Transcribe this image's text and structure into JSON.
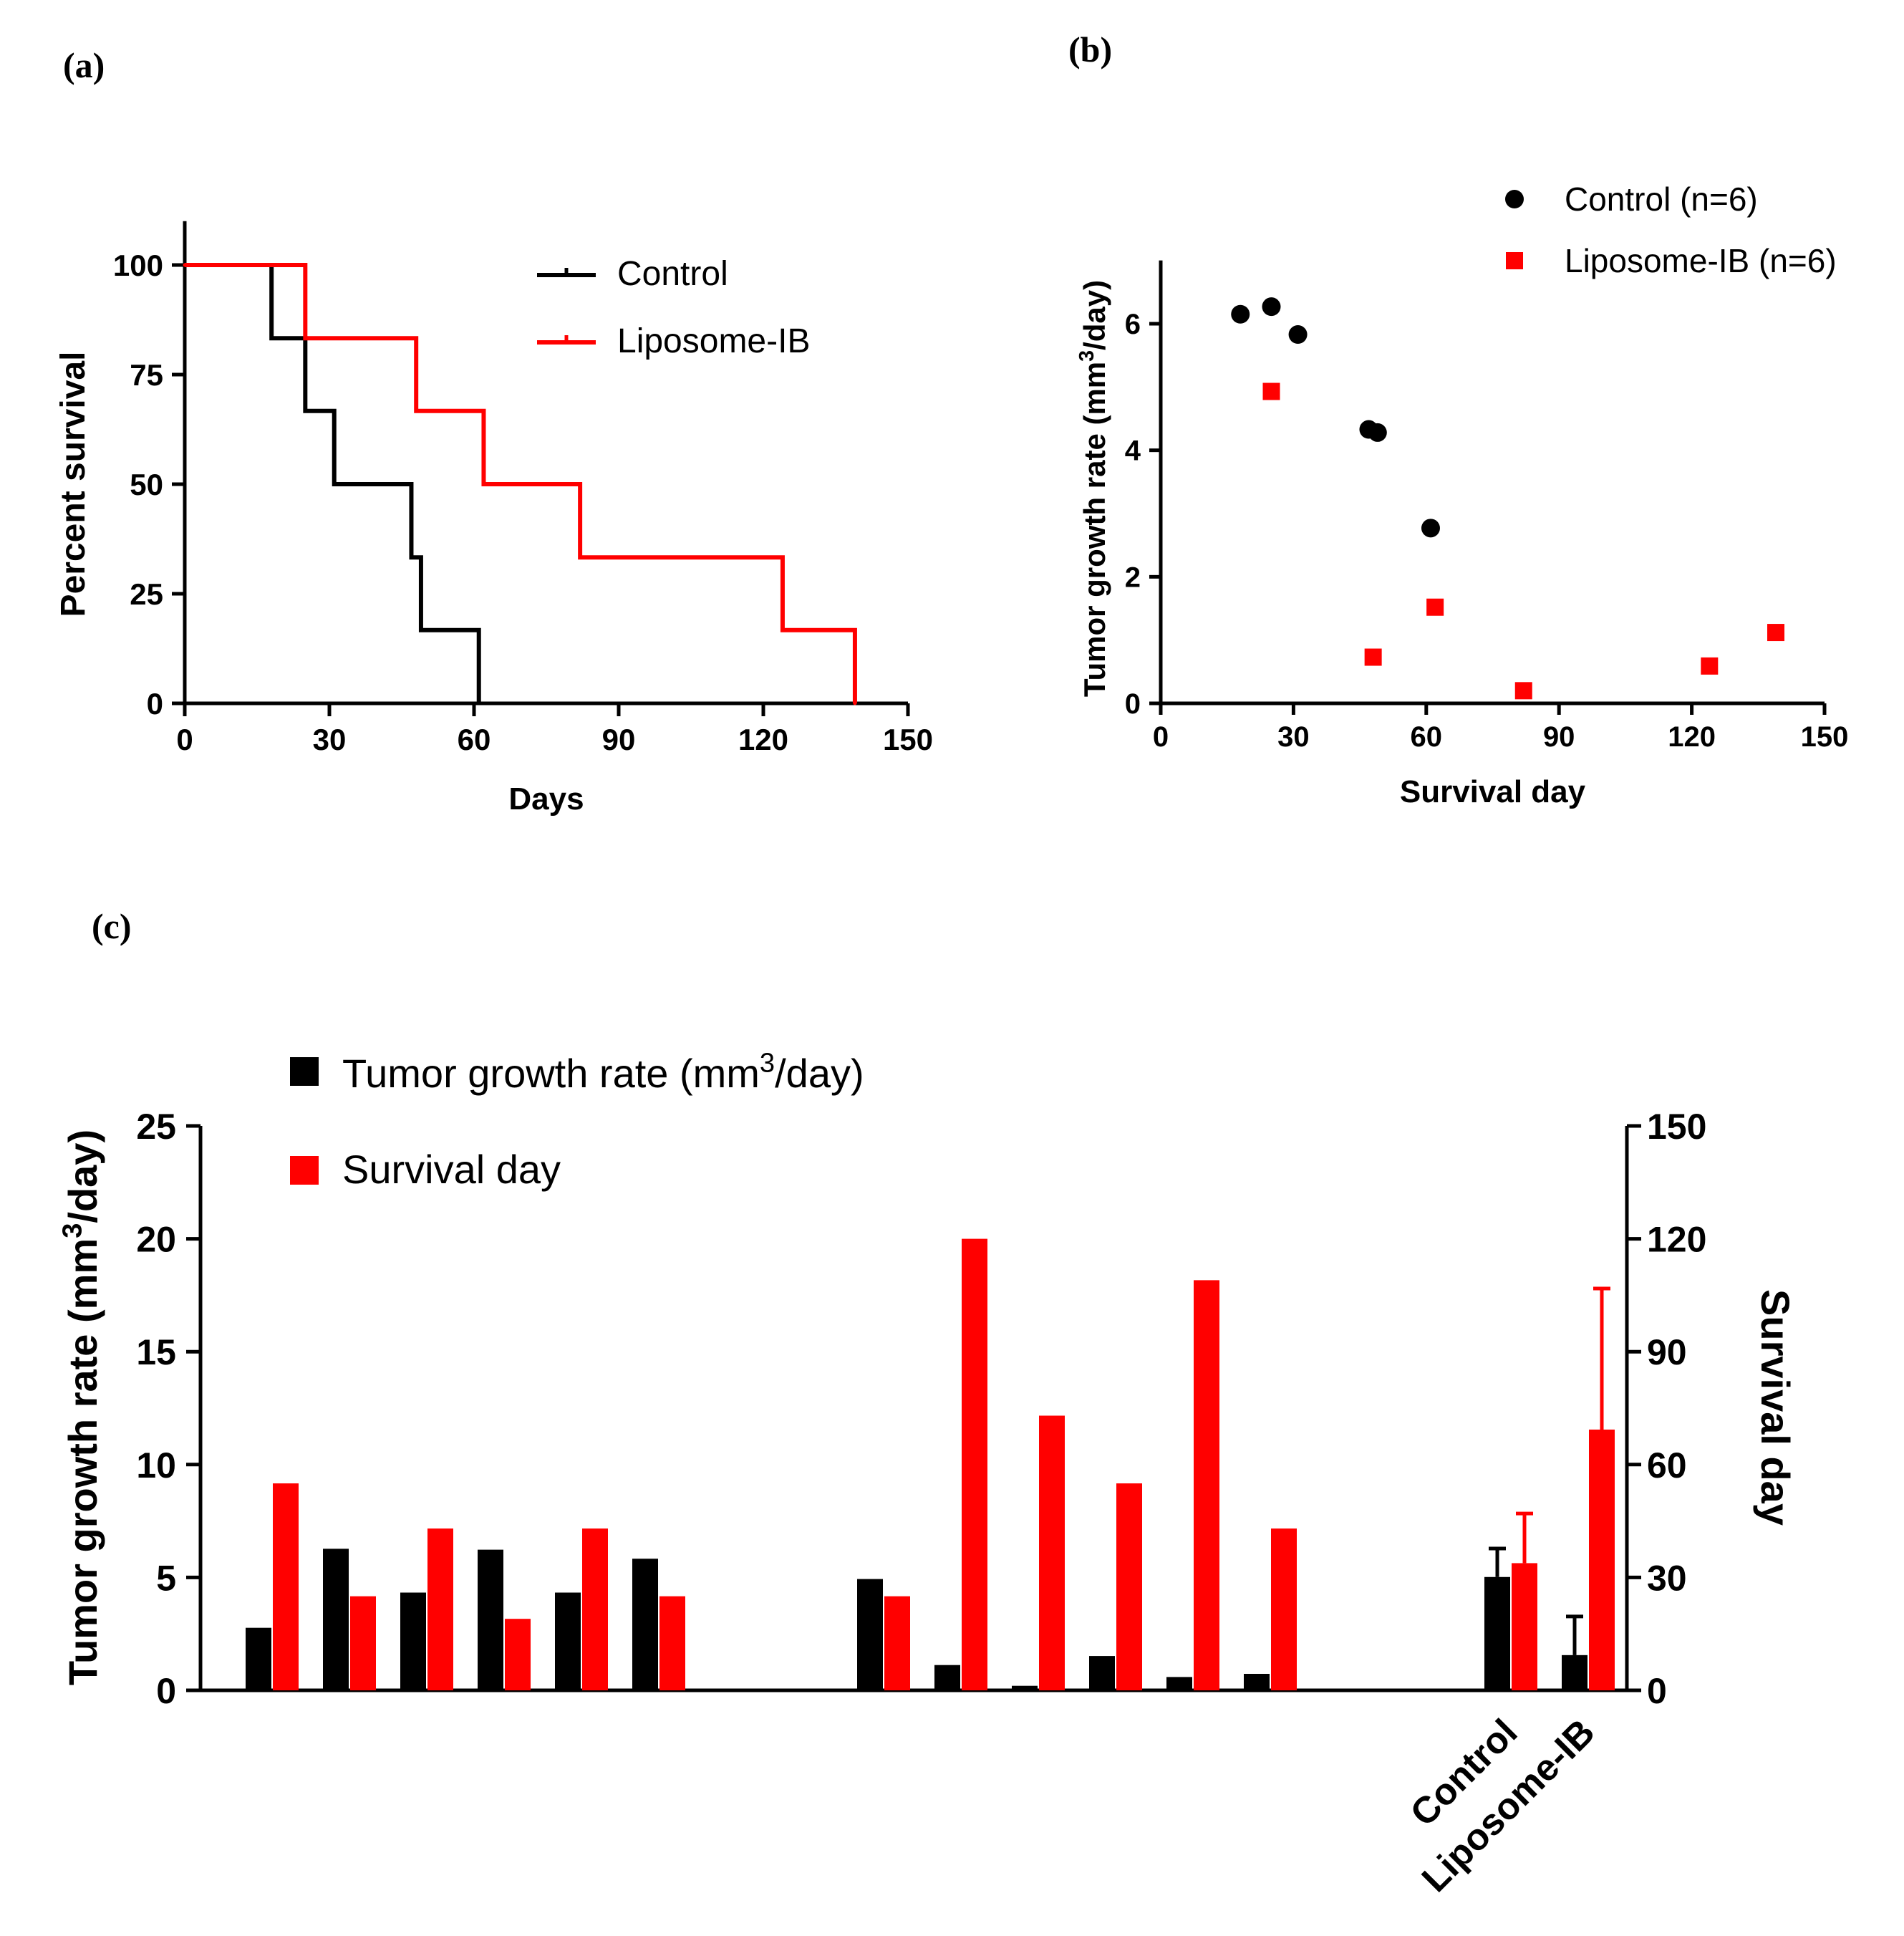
{
  "colors": {
    "control": "#000000",
    "liposome": "#ff0000",
    "axis": "#000000"
  },
  "chart_data": [
    {
      "panel": "(a)",
      "type": "line",
      "style": "step",
      "xlabel": "Days",
      "ylabel": "Percent survival",
      "xlim": [
        0,
        150
      ],
      "ylim": [
        0,
        110
      ],
      "xticks": [
        0,
        30,
        60,
        90,
        120,
        150
      ],
      "yticks": [
        0,
        25,
        50,
        75,
        100
      ],
      "legend": [
        "Control",
        "Liposome-IB"
      ],
      "legend_position": "top-right",
      "series": [
        {
          "name": "Control",
          "color": "#000000",
          "x": [
            0,
            18,
            25,
            31,
            47,
            49,
            61
          ],
          "y": [
            100,
            83.3,
            66.7,
            50,
            33.3,
            16.7,
            0
          ]
        },
        {
          "name": "Liposome-IB",
          "color": "#ff0000",
          "x": [
            0,
            25,
            48,
            62,
            82,
            124,
            139
          ],
          "y": [
            100,
            83.3,
            66.7,
            50,
            33.3,
            16.7,
            0
          ]
        }
      ]
    },
    {
      "panel": "(b)",
      "type": "scatter",
      "xlabel": "Survival day",
      "ylabel_main": "Tumor growth rate (mm",
      "ylabel_sup": "3",
      "ylabel_tail": "/day)",
      "xlim": [
        0,
        150
      ],
      "ylim": [
        0,
        7
      ],
      "xticks": [
        0,
        30,
        60,
        90,
        120,
        150
      ],
      "yticks": [
        0,
        2,
        4,
        6
      ],
      "legend_position": "top-right",
      "series": [
        {
          "name": "Control (n=6)",
          "marker": "circle",
          "color": "#000000",
          "x": [
            18,
            25,
            31,
            47,
            49,
            61
          ],
          "y": [
            6.15,
            6.27,
            5.83,
            4.33,
            4.28,
            2.77
          ]
        },
        {
          "name": "Liposome-IB (n=6)",
          "marker": "square",
          "color": "#ff0000",
          "x": [
            25,
            48,
            62,
            82,
            124,
            139
          ],
          "y": [
            4.93,
            0.73,
            1.52,
            0.2,
            0.59,
            1.12
          ]
        }
      ]
    },
    {
      "panel": "(c)",
      "type": "bar",
      "ylabel_main": "Tumor growth rate (mm",
      "ylabel_sup": "3",
      "ylabel_tail": "/day)",
      "y2label": "Survival day",
      "ylim": [
        0,
        25
      ],
      "y2lim": [
        0,
        150
      ],
      "yticks": [
        0,
        5,
        10,
        15,
        20,
        25
      ],
      "y2ticks": [
        0,
        30,
        60,
        90,
        120,
        150
      ],
      "legend_position": "top-left",
      "legend": [
        {
          "name_main": "Tumor growth rate (mm",
          "name_sup": "3",
          "name_tail": "/day)",
          "color": "#000000"
        },
        {
          "name": "Survival day",
          "color": "#ff0000"
        }
      ],
      "categories": [
        "",
        "",
        "",
        "",
        "",
        "",
        "",
        "",
        "",
        "",
        "",
        "",
        "Control",
        "Liposome-IB"
      ],
      "tumor_growth_rate": [
        2.77,
        6.27,
        4.33,
        6.23,
        4.33,
        5.83,
        4.93,
        1.12,
        0.2,
        1.52,
        0.59,
        0.73,
        5.02,
        1.56
      ],
      "survival_day": [
        55,
        25,
        43,
        19,
        43,
        25,
        25,
        120,
        73,
        55,
        109,
        43,
        33.8,
        69.3
      ],
      "error_tumor_growth_rate": [
        null,
        null,
        null,
        null,
        null,
        null,
        null,
        null,
        null,
        null,
        null,
        null,
        1.26,
        1.71
      ],
      "error_survival_day": [
        null,
        null,
        null,
        null,
        null,
        null,
        null,
        null,
        null,
        null,
        null,
        null,
        13.2,
        37.5
      ]
    }
  ]
}
